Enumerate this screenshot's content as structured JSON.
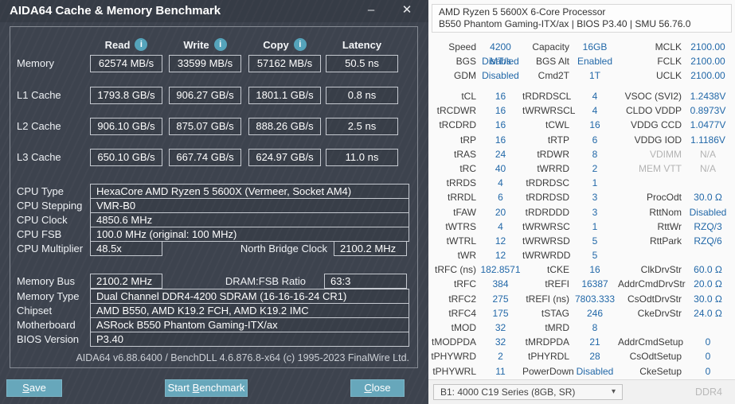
{
  "colors": {
    "aida_background": "#3d434e",
    "aida_accent_teal": "#67a7bb",
    "aida_box_border": "#c6cad1",
    "zen_value_blue": "#2268a8",
    "zen_muted_gray": "#b3b3b3"
  },
  "aida": {
    "title": "AIDA64 Cache & Memory Benchmark",
    "window_controls": {
      "minimize": "–",
      "close": "✕"
    },
    "head_cells": [
      {
        "label": "Read",
        "icon_glyph": "i"
      },
      {
        "label": "Write",
        "icon_glyph": "i"
      },
      {
        "label": "Copy",
        "icon_glyph": "i"
      },
      {
        "label": "Latency",
        "icon_glyph": "",
        "icon_cls": "hide"
      }
    ],
    "bench_rows": [
      {
        "label": "Memory",
        "read": "62574 MB/s",
        "write": "33599 MB/s",
        "copy": "57162 MB/s",
        "latency": "50.5 ns"
      },
      {
        "label": "L1 Cache",
        "read": "1793.8 GB/s",
        "write": "906.27 GB/s",
        "copy": "1801.1 GB/s",
        "latency": "0.8 ns"
      },
      {
        "label": "L2 Cache",
        "read": "906.10 GB/s",
        "write": "875.07 GB/s",
        "copy": "888.26 GB/s",
        "latency": "2.5 ns"
      },
      {
        "label": "L3 Cache",
        "read": "650.10 GB/s",
        "write": "667.74 GB/s",
        "copy": "624.97 GB/s",
        "latency": "11.0 ns"
      }
    ],
    "cpu_rows": [
      {
        "label": "CPU Type",
        "value": "HexaCore AMD Ryzen 5 5600X (Vermeer, Socket AM4)"
      },
      {
        "label": "CPU Stepping",
        "value": "VMR-B0"
      },
      {
        "label": "CPU Clock",
        "value": "4850.6 MHz"
      },
      {
        "label": "CPU FSB",
        "value": "100.0 MHz (original: 100 MHz)"
      }
    ],
    "cpu_multiplier": {
      "label": "CPU Multiplier",
      "value": "48.5x",
      "nb_label": "North Bridge Clock",
      "nb_value": "2100.2 MHz"
    },
    "memory_bus": {
      "label": "Memory Bus",
      "value": "2100.2 MHz",
      "ratio_label": "DRAM:FSB Ratio",
      "ratio_value": "63:3"
    },
    "mobo_rows": [
      {
        "label": "Memory Type",
        "value": "Dual Channel DDR4-4200 SDRAM (16-16-16-24 CR1)"
      },
      {
        "label": "Chipset",
        "value": "AMD B550, AMD K19.2 FCH, AMD K19.2 IMC"
      },
      {
        "label": "Motherboard",
        "value": "ASRock B550 Phantom Gaming-ITX/ax"
      },
      {
        "label": "BIOS Version",
        "value": "P3.40"
      }
    ],
    "version_line": "AIDA64 v6.88.6400 / BenchDLL 4.6.876.8-x64  (c) 1995-2023 FinalWire Ltd.",
    "buttons": {
      "save": {
        "pre": "",
        "mnemonic": "S",
        "rest": "ave"
      },
      "start": {
        "pre": "Start ",
        "mnemonic": "B",
        "rest": "enchmark"
      },
      "close": {
        "pre": "",
        "mnemonic": "C",
        "rest": "lose"
      }
    }
  },
  "zen": {
    "header_line1": "AMD Ryzen 5 5600X 6-Core Processor",
    "header_line2": "B550 Phantom Gaming-ITX/ax | BIOS P3.40 | SMU 56.76.0",
    "config_rows": [
      {
        "c1l": "Speed",
        "c1v": "4200 MT/s",
        "c2l": "Capacity",
        "c2v": "16GB",
        "c3l": "MCLK",
        "c3v": "2100.00"
      },
      {
        "c1l": "BGS",
        "c1v": "Disabled",
        "c2l": "BGS Alt",
        "c2v": "Enabled",
        "c3l": "FCLK",
        "c3v": "2100.00"
      },
      {
        "c1l": "GDM",
        "c1v": "Disabled",
        "c2l": "Cmd2T",
        "c2v": "1T",
        "c3l": "UCLK",
        "c3v": "2100.00"
      }
    ],
    "timing_rows": [
      {
        "c1l": "tCL",
        "c1v": "16",
        "c2l": "tRDRDSCL",
        "c2v": "4",
        "c3l": "VSOC (SVI2)",
        "c3v": "1.2438V"
      },
      {
        "c1l": "tRCDWR",
        "c1v": "16",
        "c2l": "tWRWRSCL",
        "c2v": "4",
        "c3l": "CLDO VDDP",
        "c3v": "0.8973V"
      },
      {
        "c1l": "tRCDRD",
        "c1v": "16",
        "c2l": "tCWL",
        "c2v": "16",
        "c3l": "VDDG CCD",
        "c3v": "1.0477V"
      },
      {
        "c1l": "tRP",
        "c1v": "16",
        "c2l": "tRTP",
        "c2v": "6",
        "c3l": "VDDG IOD",
        "c3v": "1.1186V"
      },
      {
        "c1l": "tRAS",
        "c1v": "24",
        "c2l": "tRDWR",
        "c2v": "8",
        "c3l": "VDIMM",
        "c3v": "N/A",
        "c3l_cls": "muted",
        "c3v_cls": "muted"
      },
      {
        "c1l": "tRC",
        "c1v": "40",
        "c2l": "tWRRD",
        "c2v": "2",
        "c3l": "MEM VTT",
        "c3v": "N/A",
        "c3l_cls": "muted",
        "c3v_cls": "muted"
      },
      {
        "c1l": "tRRDS",
        "c1v": "4",
        "c2l": "tRDRDSC",
        "c2v": "1",
        "c3l": "",
        "c3v": ""
      },
      {
        "c1l": "tRRDL",
        "c1v": "6",
        "c2l": "tRDRDSD",
        "c2v": "3",
        "c3l": "ProcOdt",
        "c3v": "30.0 Ω"
      },
      {
        "c1l": "tFAW",
        "c1v": "20",
        "c2l": "tRDRDDD",
        "c2v": "3",
        "c3l": "RttNom",
        "c3v": "Disabled"
      },
      {
        "c1l": "tWTRS",
        "c1v": "4",
        "c2l": "tWRWRSC",
        "c2v": "1",
        "c3l": "RttWr",
        "c3v": "RZQ/3"
      },
      {
        "c1l": "tWTRL",
        "c1v": "12",
        "c2l": "tWRWRSD",
        "c2v": "5",
        "c3l": "RttPark",
        "c3v": "RZQ/6"
      },
      {
        "c1l": "tWR",
        "c1v": "12",
        "c2l": "tWRWRDD",
        "c2v": "5",
        "c3l": "",
        "c3v": ""
      },
      {
        "c1l": "tRFC (ns)",
        "c1v": "182.8571",
        "c2l": "tCKE",
        "c2v": "16",
        "c3l": "ClkDrvStr",
        "c3v": "60.0 Ω"
      },
      {
        "c1l": "tRFC",
        "c1v": "384",
        "c2l": "tREFI",
        "c2v": "16387",
        "c3l": "AddrCmdDrvStr",
        "c3v": "20.0 Ω"
      },
      {
        "c1l": "tRFC2",
        "c1v": "275",
        "c2l": "tREFI (ns)",
        "c2v": "7803.333",
        "c3l": "CsOdtDrvStr",
        "c3v": "30.0 Ω"
      },
      {
        "c1l": "tRFC4",
        "c1v": "175",
        "c2l": "tSTAG",
        "c2v": "246",
        "c3l": "CkeDrvStr",
        "c3v": "24.0 Ω"
      },
      {
        "c1l": "tMOD",
        "c1v": "32",
        "c2l": "tMRD",
        "c2v": "8",
        "c3l": "",
        "c3v": ""
      },
      {
        "c1l": "tMODPDA",
        "c1v": "32",
        "c2l": "tMRDPDA",
        "c2v": "21",
        "c3l": "AddrCmdSetup",
        "c3v": "0"
      },
      {
        "c1l": "tPHYWRD",
        "c1v": "2",
        "c2l": "tPHYRDL",
        "c2v": "28",
        "c3l": "CsOdtSetup",
        "c3v": "0"
      },
      {
        "c1l": "tPHYWRL",
        "c1v": "11",
        "c2l": "PowerDown",
        "c2v": "Disabled",
        "c3l": "CkeSetup",
        "c3v": "0"
      }
    ],
    "footer": {
      "dram_select": "B1: 4000 C19 Series (8GB, SR)",
      "dropdown_arrow": "▾",
      "memory_type": "DDR4"
    }
  }
}
